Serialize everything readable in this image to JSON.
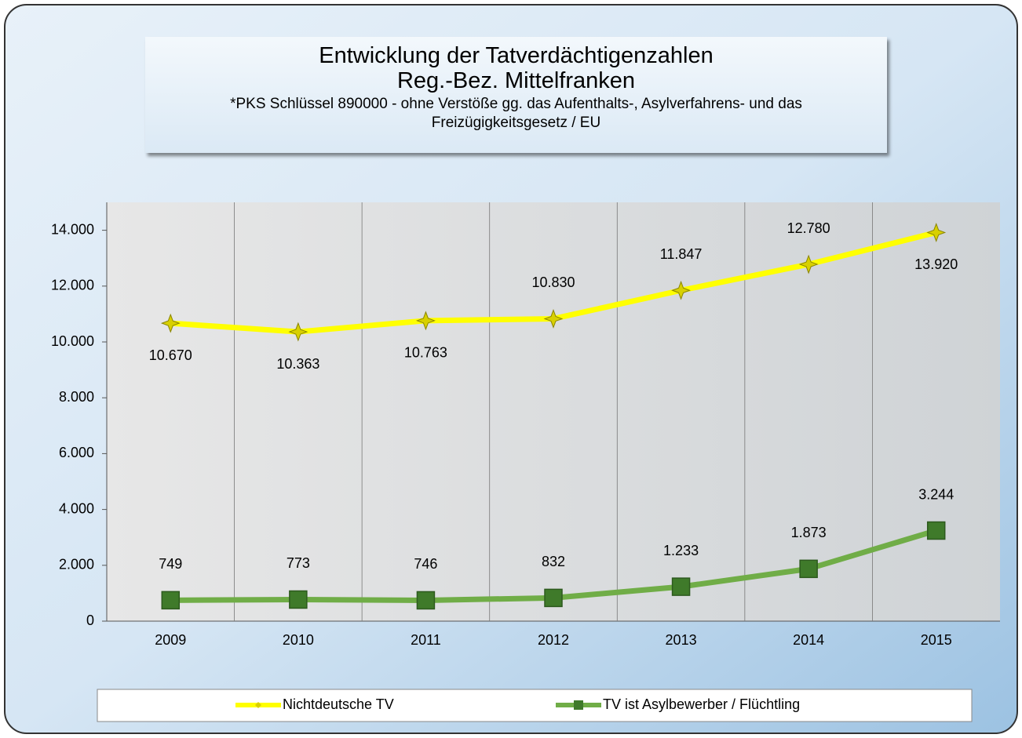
{
  "chart_data": {
    "type": "line",
    "title": "Entwicklung der Tatverdächtigenzahlen",
    "subtitle": "Reg.-Bez. Mittelfranken",
    "note": "*PKS Schlüssel 890000 - ohne Verstöße gg. das Aufenthalts-, Asylverfahrens- und das Freizügigkeitsgesetz / EU",
    "categories": [
      "2009",
      "2010",
      "2011",
      "2012",
      "2013",
      "2014",
      "2015"
    ],
    "series": [
      {
        "name": "Nichtdeutsche TV",
        "color": "#ffff00",
        "marker_color": "#d8d000",
        "values": [
          10670,
          10363,
          10763,
          10830,
          11847,
          12780,
          13920
        ],
        "value_labels": [
          "10.670",
          "10.363",
          "10.763",
          "10.830",
          "11.847",
          "12.780",
          "13.920"
        ]
      },
      {
        "name": "TV ist Asylbewerber / Flüchtling",
        "color": "#70ad47",
        "marker_color": "#3f7a2a",
        "values": [
          749,
          773,
          746,
          832,
          1233,
          1873,
          3244
        ],
        "value_labels": [
          "749",
          "773",
          "746",
          "832",
          "1.233",
          "1.873",
          "3.244"
        ]
      }
    ],
    "ylim": [
      0,
      15000
    ],
    "yticks": [
      0,
      {
        "value": 2000,
        "label": "2.000"
      },
      {
        "value": 4000,
        "label": "4.000"
      },
      {
        "value": 6000,
        "label": "6.000"
      },
      {
        "value": 8000,
        "label": "8.000"
      },
      {
        "value": 10000,
        "label": "10.000"
      },
      {
        "value": 12000,
        "label": "12.000"
      },
      {
        "value": 14000,
        "label": "14.000"
      }
    ],
    "legend": "bottom"
  }
}
